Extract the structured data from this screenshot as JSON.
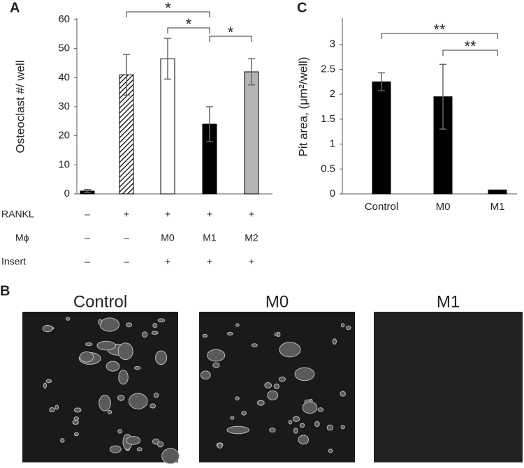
{
  "chart_data": [
    {
      "type": "bar",
      "panel": "A",
      "y_label": "Osteoclast #/ well",
      "categories": [
        null,
        null,
        null,
        null,
        null
      ],
      "values": [
        1,
        41,
        46.5,
        24,
        42
      ],
      "errors": [
        0.5,
        7,
        7,
        6,
        4.5
      ],
      "colors": [
        "#000000",
        "#ffffff",
        "#ffffff",
        "#000000",
        "#b4b4b4"
      ],
      "hatch": [
        false,
        true,
        false,
        false,
        false
      ],
      "ylim": [
        0,
        60
      ],
      "yticks": [
        0,
        10,
        20,
        30,
        40,
        50,
        60
      ],
      "significance": [
        "*",
        "*",
        "*"
      ],
      "table": [
        {
          "label": "RANKL",
          "cells": [
            "–",
            "+",
            "+",
            "+",
            "+"
          ]
        },
        {
          "label": "Mϕ",
          "cells": [
            "–",
            "–",
            "M0",
            "M1",
            "M2"
          ]
        },
        {
          "label": "Insert",
          "cells": [
            "–",
            "–",
            "+",
            "+",
            "+"
          ]
        }
      ]
    },
    {
      "type": "bar",
      "panel": "C",
      "y_label": "Pit area, (μm²/well)",
      "categories": [
        "Control",
        "M0",
        "M1"
      ],
      "values": [
        2.25,
        1.95,
        0.08
      ],
      "errors": [
        0.18,
        0.65,
        0
      ],
      "colors": [
        "#000000",
        "#000000",
        "#000000"
      ],
      "hatch": [
        false,
        false,
        false
      ],
      "ylim": [
        0,
        3.5
      ],
      "yticks": [
        0,
        0.5,
        1,
        1.5,
        2,
        2.5,
        3
      ],
      "significance": [
        "**",
        "**"
      ]
    }
  ],
  "images": {
    "panel": "B",
    "titles": [
      "Control",
      "M0",
      "M1"
    ]
  }
}
